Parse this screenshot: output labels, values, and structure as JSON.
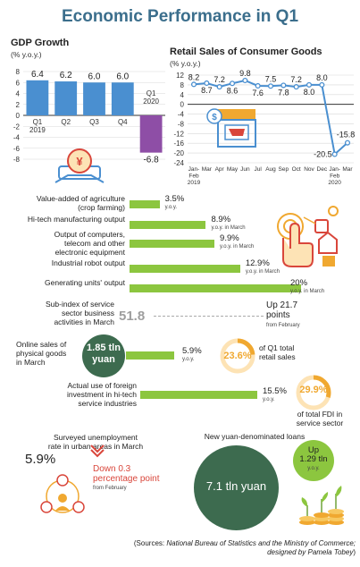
{
  "title": "Economic Performance in Q1",
  "gdp": {
    "title": "GDP Growth",
    "unit": "(% y.o.y.)",
    "chart_data": {
      "type": "bar",
      "categories": [
        "Q1\n2019",
        "Q2",
        "Q3",
        "Q4",
        "Q1\n2020"
      ],
      "values": [
        6.4,
        6.2,
        6.0,
        6.0,
        -6.8
      ],
      "value_labels": [
        "6.4",
        "6.2",
        "6.0",
        "6.0",
        "-6.8"
      ],
      "y_ticks": [
        "8",
        "6",
        "4",
        "2",
        "0",
        "-2",
        "-4",
        "-6",
        "-8"
      ],
      "ylim": [
        -8,
        8
      ],
      "colors": [
        "#4a8fd0",
        "#4a8fd0",
        "#4a8fd0",
        "#4a8fd0",
        "#8e4ea6"
      ]
    }
  },
  "retail": {
    "title": "Retail Sales of Consumer Goods",
    "unit": "(% y.o.y.)",
    "chart_data": {
      "type": "line",
      "x": [
        "Jan-Feb 2019",
        "Mar",
        "Apr",
        "May",
        "Jun",
        "Jul",
        "Aug",
        "Sep",
        "Oct",
        "Nov",
        "Dec",
        "Jan-Feb 2020",
        "Mar"
      ],
      "values": [
        8.2,
        8.7,
        7.2,
        8.6,
        9.8,
        7.6,
        7.5,
        7.8,
        7.2,
        8.0,
        8.0,
        -20.5,
        -15.8
      ],
      "value_labels": [
        "8.2",
        "8.7",
        "7.2",
        "8.6",
        "9.8",
        "7.6",
        "7.5",
        "7.8",
        "7.2",
        "8.0",
        "8.0",
        "-20.5",
        "-15.8"
      ],
      "x_tick_labels": [
        "Jan-\nFeb\n2019",
        "Mar",
        "Apr",
        "May",
        "Jun",
        "Jul",
        "Aug",
        "Sep",
        "Oct",
        "Nov",
        "Dec",
        "Jan-\nFeb\n2020",
        "Mar"
      ],
      "y_ticks": [
        "12",
        "8",
        "4",
        "0",
        "-4",
        "-8",
        "-12",
        "-16",
        "-20",
        "-24"
      ],
      "ylim": [
        -24,
        12
      ],
      "line_color": "#4a8fd0"
    }
  },
  "indicators": {
    "chart_data": {
      "type": "bar",
      "categories": [
        "Value-added of agriculture (crop farming)",
        "Hi-tech manufacturing output",
        "Output of computers, telecom and other electronic equipment",
        "Industrial robot output",
        "Generating units' output"
      ],
      "values": [
        3.5,
        8.9,
        9.9,
        12.9,
        20
      ],
      "color": "#8cc63f"
    },
    "rows": [
      {
        "label": "Value-added of agriculture\n(crop farming)",
        "value": "3.5%",
        "note": "y.o.y."
      },
      {
        "label": "Hi-tech manufacturing output",
        "value": "8.9%",
        "note": "y.o.y. in March"
      },
      {
        "label": "Output of computers,\ntelecom and other\nelectronic equipment",
        "value": "9.9%",
        "note": "y.o.y. in March"
      },
      {
        "label": "Industrial robot output",
        "value": "12.9%",
        "note": "y.o.y. in March"
      },
      {
        "label": "Generating units' output",
        "value": "20%",
        "note": "y.o.y. in March"
      }
    ]
  },
  "service": {
    "label": "Sub-index of service\nsector business\nactivities in March",
    "value": "51.8",
    "change": "Up 21.7\npoints",
    "note": "from February"
  },
  "online": {
    "label": "Online sales of\nphysical goods\nin March",
    "amount": "1.85 tln\nyuan",
    "value": "5.9%",
    "note": "y.o.y.",
    "bar_value": 5.9,
    "share": "23.6%",
    "share_fraction": 0.236,
    "share_label": "of Q1 total\nretail sales"
  },
  "foreign": {
    "label": "Actual use of foreign\ninvestment in hi-tech\nservice industries",
    "value": "15.5%",
    "note": "y.o.y.",
    "bar_value": 15.5,
    "share": "29.9%",
    "share_fraction": 0.299,
    "share_label": "of total FDI in\nservice sector"
  },
  "unemployment": {
    "label": "Surveyed unemployment\nrate in urban areas in March",
    "value": "5.9%",
    "change": "Down 0.3\npercentage point",
    "note": "from February"
  },
  "loans": {
    "label": "New yuan-denominated loans",
    "value": "7.1 tln yuan",
    "change": "Up\n1.29 tln",
    "note": "y.o.y."
  },
  "source": {
    "prefix": "(Sources: ",
    "italic": "National Bureau of Statistics and the Ministry of Commerce;",
    "line2_italic": "designed by Pamela Tobey",
    "suffix": ")"
  },
  "icons": [
    "yuan-coin-icon",
    "shop-cart-icon",
    "hand-tech-icon",
    "people-network-icon",
    "coin-plant-icon"
  ],
  "colors": {
    "title": "#3b6e8c",
    "blue": "#4a8fd0",
    "purple": "#8e4ea6",
    "green": "#8cc63f",
    "dark_green": "#3d6b4f",
    "orange": "#f0a830",
    "red": "#d9463b"
  }
}
